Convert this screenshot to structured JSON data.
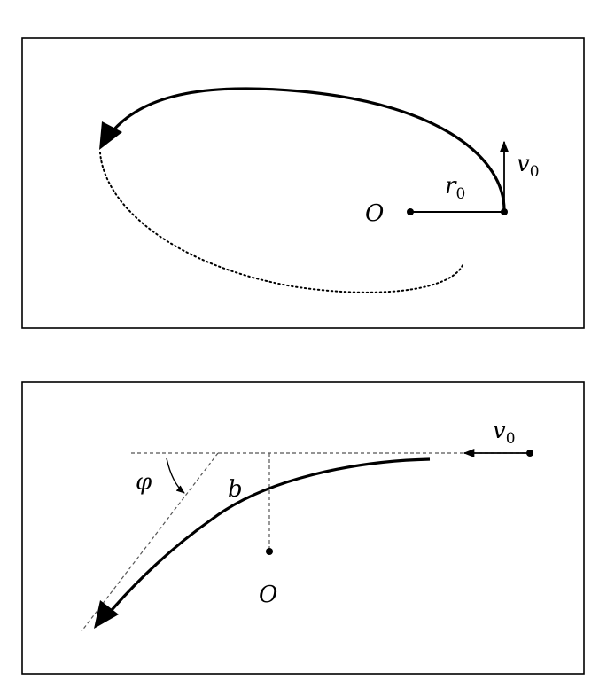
{
  "colors": {
    "stroke": "#000000",
    "guide": "#555555",
    "background": "#ffffff"
  },
  "panel_top": {
    "origin_label": "O",
    "radius_label": "r",
    "radius_subscript": "0",
    "velocity_label": "v",
    "velocity_subscript": "0"
  },
  "panel_bottom": {
    "origin_label": "O",
    "impact_parameter_label": "b",
    "angle_label": "φ",
    "velocity_label": "v",
    "velocity_subscript": "0"
  }
}
